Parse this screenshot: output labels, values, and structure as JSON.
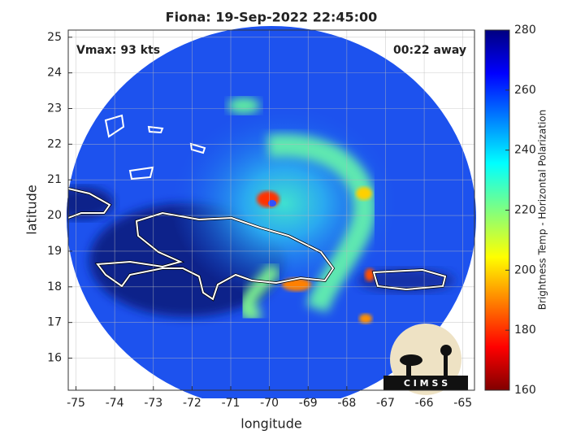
{
  "chart_data": {
    "type": "map",
    "title": "Fiona: 19-Sep-2022 22:45:00",
    "annotations": [
      "Vmax: 93 kts",
      "00:22 away"
    ],
    "x_label": "longitude",
    "y_label": "latitude",
    "xlim": [
      -75.2,
      -64.7
    ],
    "ylim": [
      15.1,
      25.2
    ],
    "xticks": [
      -75,
      -74,
      -73,
      -72,
      -71,
      -70,
      -69,
      -68,
      -67,
      -66,
      -65
    ],
    "yticks": [
      16,
      17,
      18,
      19,
      20,
      21,
      22,
      23,
      24,
      25
    ],
    "grid": true,
    "colorbar": {
      "label": "Brightness Temp - Horizontal Polarization",
      "lim": [
        160,
        280
      ],
      "ticks": [
        160,
        180,
        200,
        220,
        240,
        260,
        280
      ],
      "colormap": "jet"
    },
    "logo_text": "C I M S S"
  }
}
